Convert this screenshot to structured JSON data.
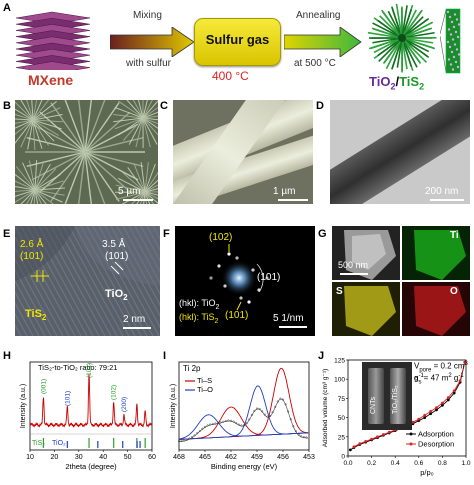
{
  "panels": {
    "A": {
      "label": "A",
      "mxene": "MXene",
      "arrow1_top": "Mixing",
      "arrow1_bottom": "with sulfur",
      "box_text": "Sulfur gas",
      "temp": "400 °C",
      "arrow2_top": "Annealing",
      "arrow2_bottom": "at 500 °C",
      "product_tio2": "TiO",
      "product_sub": "2",
      "product_slash": "/",
      "product_tis": "TiS",
      "product_tis_sub": "2"
    },
    "B": {
      "label": "B",
      "scale": "5 µm"
    },
    "C": {
      "label": "C",
      "scale": "1 µm"
    },
    "D": {
      "label": "D",
      "scale": "200 nm"
    },
    "E": {
      "label": "E",
      "d1": "2.6 Å",
      "d1_hkl": "(101)",
      "d2": "3.5 Å",
      "d2_hkl": "(101)",
      "tio2": "TiO",
      "tio2_sub": "2",
      "tis2": "TiS",
      "tis2_sub": "2",
      "scale": "2 nm"
    },
    "F": {
      "label": "F",
      "spot1": "(102)",
      "spot2": "(101)",
      "spot3": "(101)",
      "legend1": "(hkl): TiO",
      "legend1_sub": "2",
      "legend2": "(hkl): TiS",
      "legend2_sub": "2",
      "scale": "5 1/nm"
    },
    "G": {
      "label": "G",
      "scale": "500 nm",
      "ti": "Ti",
      "s": "S",
      "o": "O"
    },
    "H": {
      "label": "H",
      "title": "TiS₂-to-TiO₂ ratio: 79:21",
      "peaks": [
        "(001)",
        "(101)",
        "(101)",
        "(102)",
        "(200)"
      ],
      "ref1": "TiS₂",
      "ref2": "TiO₂"
    },
    "I": {
      "label": "I",
      "title": "Ti 2p",
      "legend1": "Ti–S",
      "legend2": "Ti–O"
    },
    "J": {
      "label": "J",
      "vpore": "V",
      "vpore_sub": "pore",
      "vpore_val": " = 0.2 cm",
      "vpore_unit": "3",
      "vpore_tail": " g",
      "vpore_tail_sup": "-1",
      "as": "a",
      "as_sub": "s",
      "as_val": " = 47 m",
      "as_unit": "2",
      "as_tail": " g",
      "as_tail_sup": "-1",
      "vial1": "CNTs",
      "vial2": "TiO₂/TiS₂",
      "legend1": "Adsorption",
      "legend2": "Desorption"
    }
  },
  "chart_data": [
    {
      "type": "line",
      "panel": "H",
      "title": "TiS₂-to-TiO₂ ratio: 79:21",
      "xlabel": "2theta (degree)",
      "ylabel": "Intensity (a.u.)",
      "xlim": [
        10,
        60
      ],
      "xticks": [
        10,
        20,
        30,
        40,
        50,
        60
      ],
      "peaks_x": [
        15.5,
        25.3,
        34.2,
        44.3,
        48.5,
        53.8,
        57.2
      ],
      "peak_heights": [
        0.55,
        0.35,
        1.0,
        0.45,
        0.2,
        0.4,
        0.25
      ],
      "ref_tis2_x": [
        15.5,
        34.2,
        44.3,
        53.8,
        57.2
      ],
      "ref_tio2_x": [
        25.3,
        37.8,
        48.0,
        53.9,
        55.1
      ],
      "colors": {
        "data": "#cc0000",
        "tis2": "#2ca02c",
        "tio2": "#1f3fbf"
      }
    },
    {
      "type": "line",
      "panel": "I",
      "title": "Ti 2p",
      "xlabel": "Binding energy (eV)",
      "ylabel": "Intensity (a.u.)",
      "xlim": [
        468,
        453
      ],
      "xticks": [
        468,
        465,
        462,
        459,
        456,
        453
      ],
      "series": [
        {
          "name": "Ti–S",
          "color": "#cc0000",
          "peaks": [
            {
              "x": 462.0,
              "h": 0.45,
              "w": 1.2
            },
            {
              "x": 456.2,
              "h": 1.0,
              "w": 0.9
            }
          ]
        },
        {
          "name": "Ti–O",
          "color": "#1f3fbf",
          "peaks": [
            {
              "x": 464.6,
              "h": 0.35,
              "w": 1.2
            },
            {
              "x": 458.9,
              "h": 0.75,
              "w": 0.9
            }
          ]
        }
      ]
    },
    {
      "type": "line",
      "panel": "J",
      "xlabel": "p/p₀",
      "ylabel": "Adsorbed volume (cm³ g⁻¹)",
      "xlim": [
        0.0,
        1.0
      ],
      "xticks": [
        0.0,
        0.2,
        0.4,
        0.6,
        0.8,
        1.0
      ],
      "ylim": [
        0,
        125
      ],
      "yticks": [
        0,
        25,
        50,
        75,
        100,
        125
      ],
      "series": [
        {
          "name": "Adsorption",
          "color": "#000000",
          "x": [
            0.02,
            0.05,
            0.1,
            0.15,
            0.2,
            0.25,
            0.3,
            0.35,
            0.4,
            0.45,
            0.5,
            0.55,
            0.6,
            0.65,
            0.7,
            0.75,
            0.8,
            0.85,
            0.9,
            0.95,
            0.99
          ],
          "y": [
            8,
            11,
            15,
            18,
            21,
            24,
            27,
            30,
            33,
            36,
            39,
            42,
            46,
            50,
            55,
            60,
            66,
            73,
            82,
            96,
            122
          ]
        },
        {
          "name": "Desorption",
          "color": "#dd2222",
          "x": [
            0.99,
            0.95,
            0.9,
            0.85,
            0.8,
            0.75,
            0.7,
            0.65,
            0.6,
            0.55,
            0.5,
            0.45,
            0.4,
            0.35,
            0.3,
            0.25,
            0.2,
            0.15,
            0.1,
            0.05
          ],
          "y": [
            122,
            98,
            85,
            76,
            69,
            63,
            58,
            53,
            48,
            44,
            40,
            37,
            34,
            31,
            28,
            25,
            22,
            19,
            16,
            12
          ]
        }
      ]
    }
  ]
}
